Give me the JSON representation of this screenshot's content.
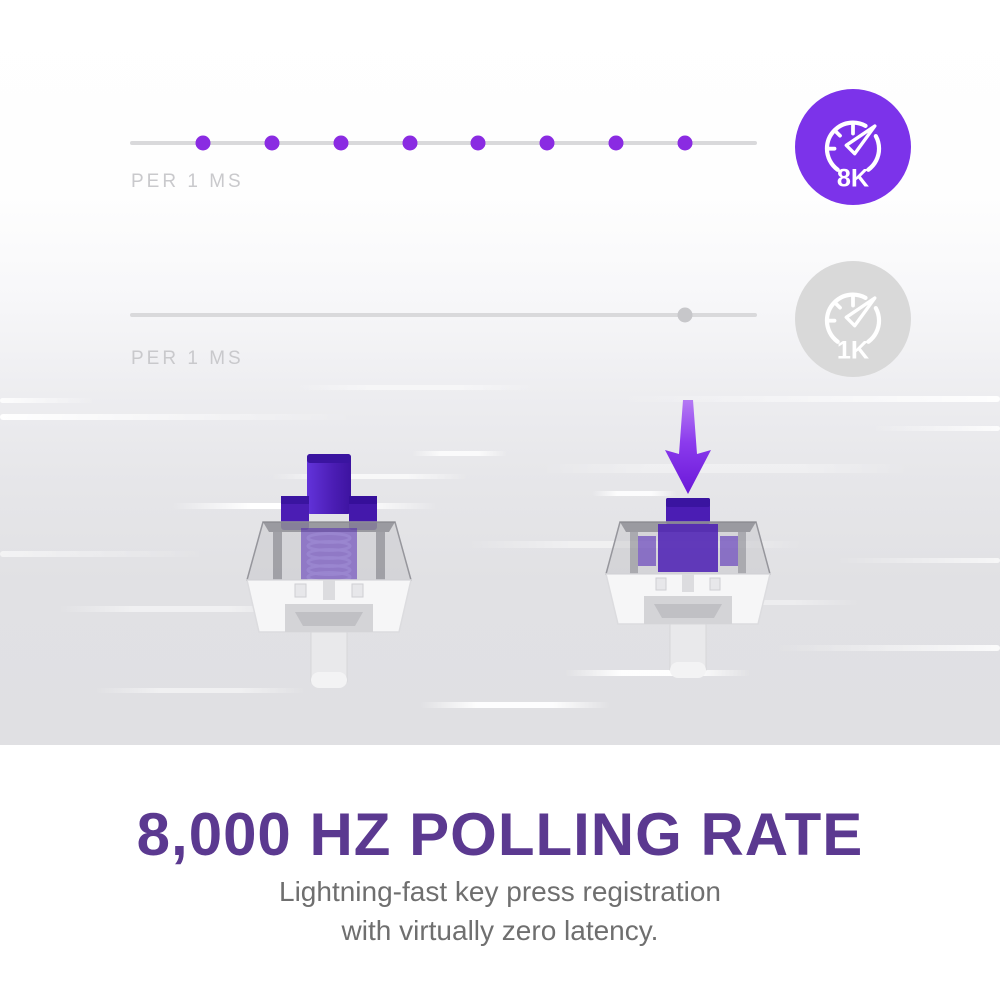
{
  "colors": {
    "accent_purple": "#7c33ea",
    "deep_purple": "#4b1db4",
    "dot_purple": "#8a2be2",
    "title_purple": "#5b3990",
    "badge_gray": "#d9d9d9",
    "track_gray": "#d9d9db",
    "label_gray": "#c9c9cc",
    "subtitle_gray": "#6f6f6f"
  },
  "timelines": {
    "fast": {
      "label": "PER 1 MS",
      "badge_label": "8K",
      "dot_count": 8
    },
    "slow": {
      "label": "PER 1 MS",
      "badge_label": "1K",
      "dot_count": 1
    }
  },
  "footer": {
    "title": "8,000 HZ POLLING RATE",
    "subtitle_line1": "Lightning-fast key press registration",
    "subtitle_line2": "with virtually zero latency."
  }
}
